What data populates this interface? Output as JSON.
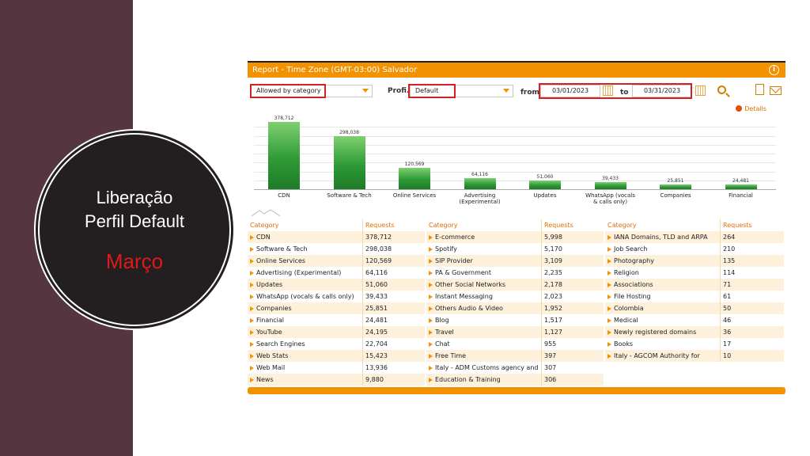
{
  "slide": {
    "line1": "Liberação",
    "line2": "Perfil Default",
    "month": "Março"
  },
  "report": {
    "title": "Report - Time Zone (GMT-03:00) Salvador",
    "info_icon": "i",
    "report_select": "Allowed by category",
    "profile_label": "Profi.:",
    "profile_select": "Default",
    "from_label": "from",
    "from_date": "03/01/2023",
    "to_label": "to",
    "to_date": "03/31/2023",
    "details_label": "Details",
    "icons": [
      "calendar-icon",
      "calendar-icon",
      "search-icon",
      "document-icon",
      "mail-icon"
    ],
    "colors": {
      "accent": "#f39200",
      "highlight": "#d42020",
      "bar": "#2e9a36",
      "band": "#55353f"
    }
  },
  "chart_data": {
    "type": "bar",
    "categories": [
      "CDN",
      "Software & Tech",
      "Online Services",
      "Advertising (Experimental)",
      "Updates",
      "WhatsApp (vocals & calls only)",
      "Companies",
      "Financial"
    ],
    "values": [
      378712,
      298038,
      120569,
      64116,
      51060,
      39433,
      25851,
      24481
    ],
    "value_labels": [
      "378,712",
      "298,038",
      "120,569",
      "64,116",
      "51,060",
      "39,433",
      "25,851",
      "24,481"
    ],
    "ylim": [
      0,
      400000
    ],
    "grid": true
  },
  "tables": {
    "header_category": "Category",
    "header_requests": "Requests",
    "columns": [
      [
        [
          "CDN",
          "378,712"
        ],
        [
          "Software & Tech",
          "298,038"
        ],
        [
          "Online Services",
          "120,569"
        ],
        [
          "Advertising (Experimental)",
          "64,116"
        ],
        [
          "Updates",
          "51,060"
        ],
        [
          "WhatsApp (vocals & calls only)",
          "39,433"
        ],
        [
          "Companies",
          "25,851"
        ],
        [
          "Financial",
          "24,481"
        ],
        [
          "YouTube",
          "24,195"
        ],
        [
          "Search Engines",
          "22,704"
        ],
        [
          "Web Stats",
          "15,423"
        ],
        [
          "Web Mail",
          "13,936"
        ],
        [
          "News",
          "9,880"
        ]
      ],
      [
        [
          "E-commerce",
          "5,998"
        ],
        [
          "Spotify",
          "5,170"
        ],
        [
          "SIP Provider",
          "3,109"
        ],
        [
          "PA & Government",
          "2,235"
        ],
        [
          "Other Social Networks",
          "2,178"
        ],
        [
          "Instant Messaging",
          "2,023"
        ],
        [
          "Others Audio & Video",
          "1,952"
        ],
        [
          "Blog",
          "1,517"
        ],
        [
          "Travel",
          "1,127"
        ],
        [
          "Chat",
          "955"
        ],
        [
          "Free Time",
          "397"
        ],
        [
          "Italy - ADM Customs agency and",
          "307"
        ],
        [
          "Education & Training",
          "306"
        ]
      ],
      [
        [
          "IANA Domains, TLD and ARPA",
          "264"
        ],
        [
          "Job Search",
          "210"
        ],
        [
          "Photography",
          "135"
        ],
        [
          "Religion",
          "114"
        ],
        [
          "Associations",
          "71"
        ],
        [
          "File Hosting",
          "61"
        ],
        [
          "Colombia",
          "50"
        ],
        [
          "Medical",
          "46"
        ],
        [
          "Newly registered domains",
          "36"
        ],
        [
          "Books",
          "17"
        ],
        [
          "Italy - AGCOM Authority for",
          "10"
        ]
      ]
    ]
  }
}
